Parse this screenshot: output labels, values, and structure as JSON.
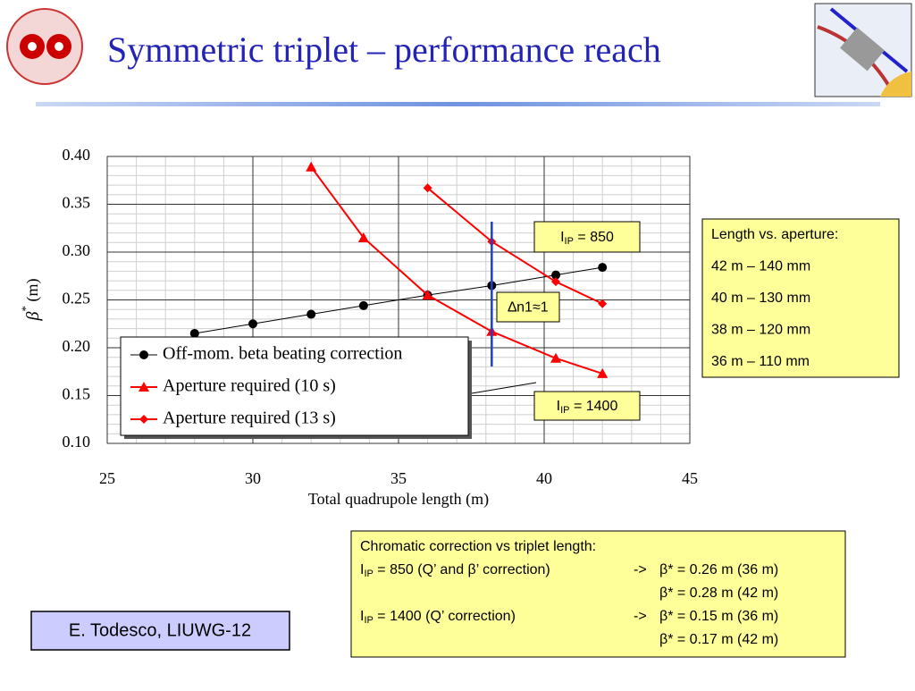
{
  "title": "Symmetric triplet – performance reach",
  "chart_data": {
    "type": "line",
    "x_label": "Total quadrupole length (m)",
    "y_label": {
      "symbol": "β",
      "sup": "*",
      "unit": " (m)"
    },
    "xlim": [
      25,
      45
    ],
    "xticks": [
      25,
      30,
      35,
      40,
      45
    ],
    "ylim": [
      0.1,
      0.4
    ],
    "yticks": [
      {
        "value": 0.1,
        "label": "0.10"
      },
      0.15,
      {
        "value": 0.2,
        "label": "0.20"
      },
      0.25,
      {
        "value": 0.3,
        "label": "0.30"
      },
      0.35,
      {
        "value": 0.4,
        "label": "0.40"
      }
    ],
    "grid": true,
    "minor_grid": {
      "x_step": 1,
      "y_step": 0.01
    },
    "legend": "lower left",
    "series": [
      {
        "name": "Off-mom. beta beating correction",
        "color": "#000000",
        "marker": "circle",
        "x": [
          28,
          30,
          32,
          33.8,
          36,
          38.2,
          40.4,
          42
        ],
        "values": [
          0.215,
          0.225,
          0.235,
          0.244,
          0.255,
          0.265,
          0.276,
          0.284
        ]
      },
      {
        "name": "Aperture required (10 s)",
        "color": "#ff0000",
        "marker": "triangle",
        "x": [
          32,
          33.8,
          36,
          38.2,
          40.4,
          42
        ],
        "values": [
          0.389,
          0.315,
          0.255,
          0.217,
          0.189,
          0.173
        ]
      },
      {
        "name": "Aperture required (13 s)",
        "color": "#ff0000",
        "marker": "diamond",
        "x": [
          36,
          38.2,
          40.4,
          42
        ],
        "values": [
          0.367,
          0.311,
          0.269,
          0.246
        ]
      }
    ],
    "annotations": [
      {
        "pre": "I",
        "sub": "IP",
        "text": " = 850"
      },
      {
        "text": "∆n1≈1"
      },
      {
        "pre": "I",
        "sub": "IP",
        "text": " = 1400"
      }
    ]
  },
  "aperture_box": [
    "Length vs. aperture:",
    "42 m – 140 mm",
    "40 m – 130 mm",
    "38 m – 120 mm",
    "36 m – 110 mm"
  ],
  "chromatic_box": {
    "heading": "Chromatic correction vs triplet length:",
    "rows": [
      {
        "pre": "I",
        "sub": "IP",
        "text": " = 850 (Q’ and β’ correction)",
        "arrow": "->",
        "result": "β* = 0.26 m (36 m)"
      },
      {
        "result": "β* = 0.28 m (42 m)"
      },
      {
        "pre": "I",
        "sub": "IP",
        "text": " = 1400 (Q’ correction)",
        "arrow": "->",
        "result": "β* = 0.15 m (36 m)"
      },
      {
        "result": "β* = 0.17 m (42 m)"
      }
    ]
  },
  "author": "E. Todesco, LIUWG-12"
}
